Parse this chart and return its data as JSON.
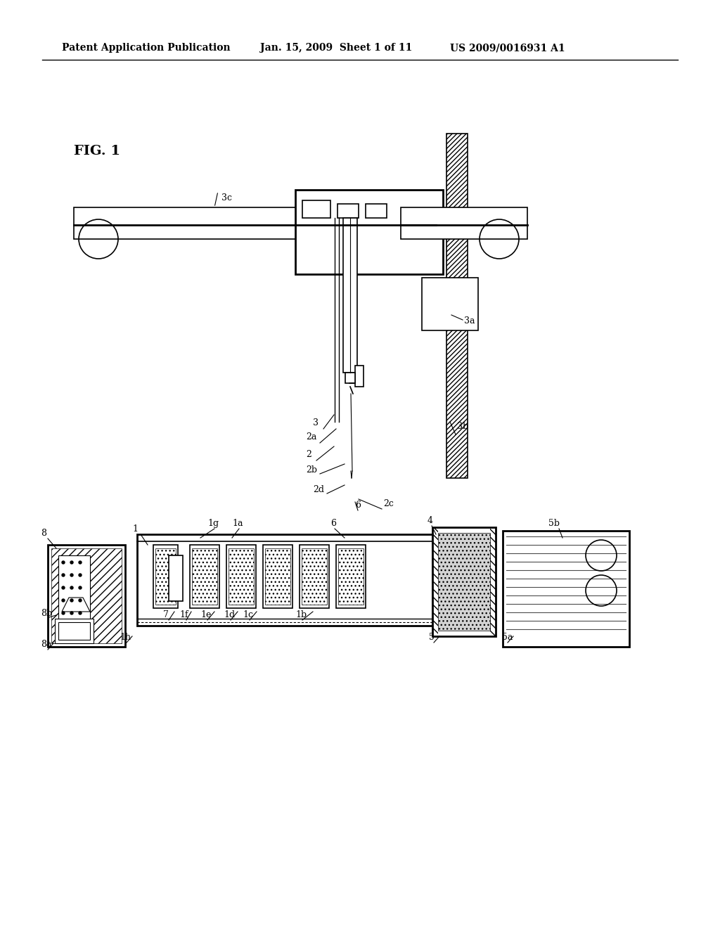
{
  "bg_color": "#ffffff",
  "header_text1": "Patent Application Publication",
  "header_text2": "Jan. 15, 2009  Sheet 1 of 11",
  "header_text3": "US 2009/0016931 A1",
  "fig_label": "FIG. 1",
  "line_color": "#000000",
  "hatch_color": "#000000"
}
